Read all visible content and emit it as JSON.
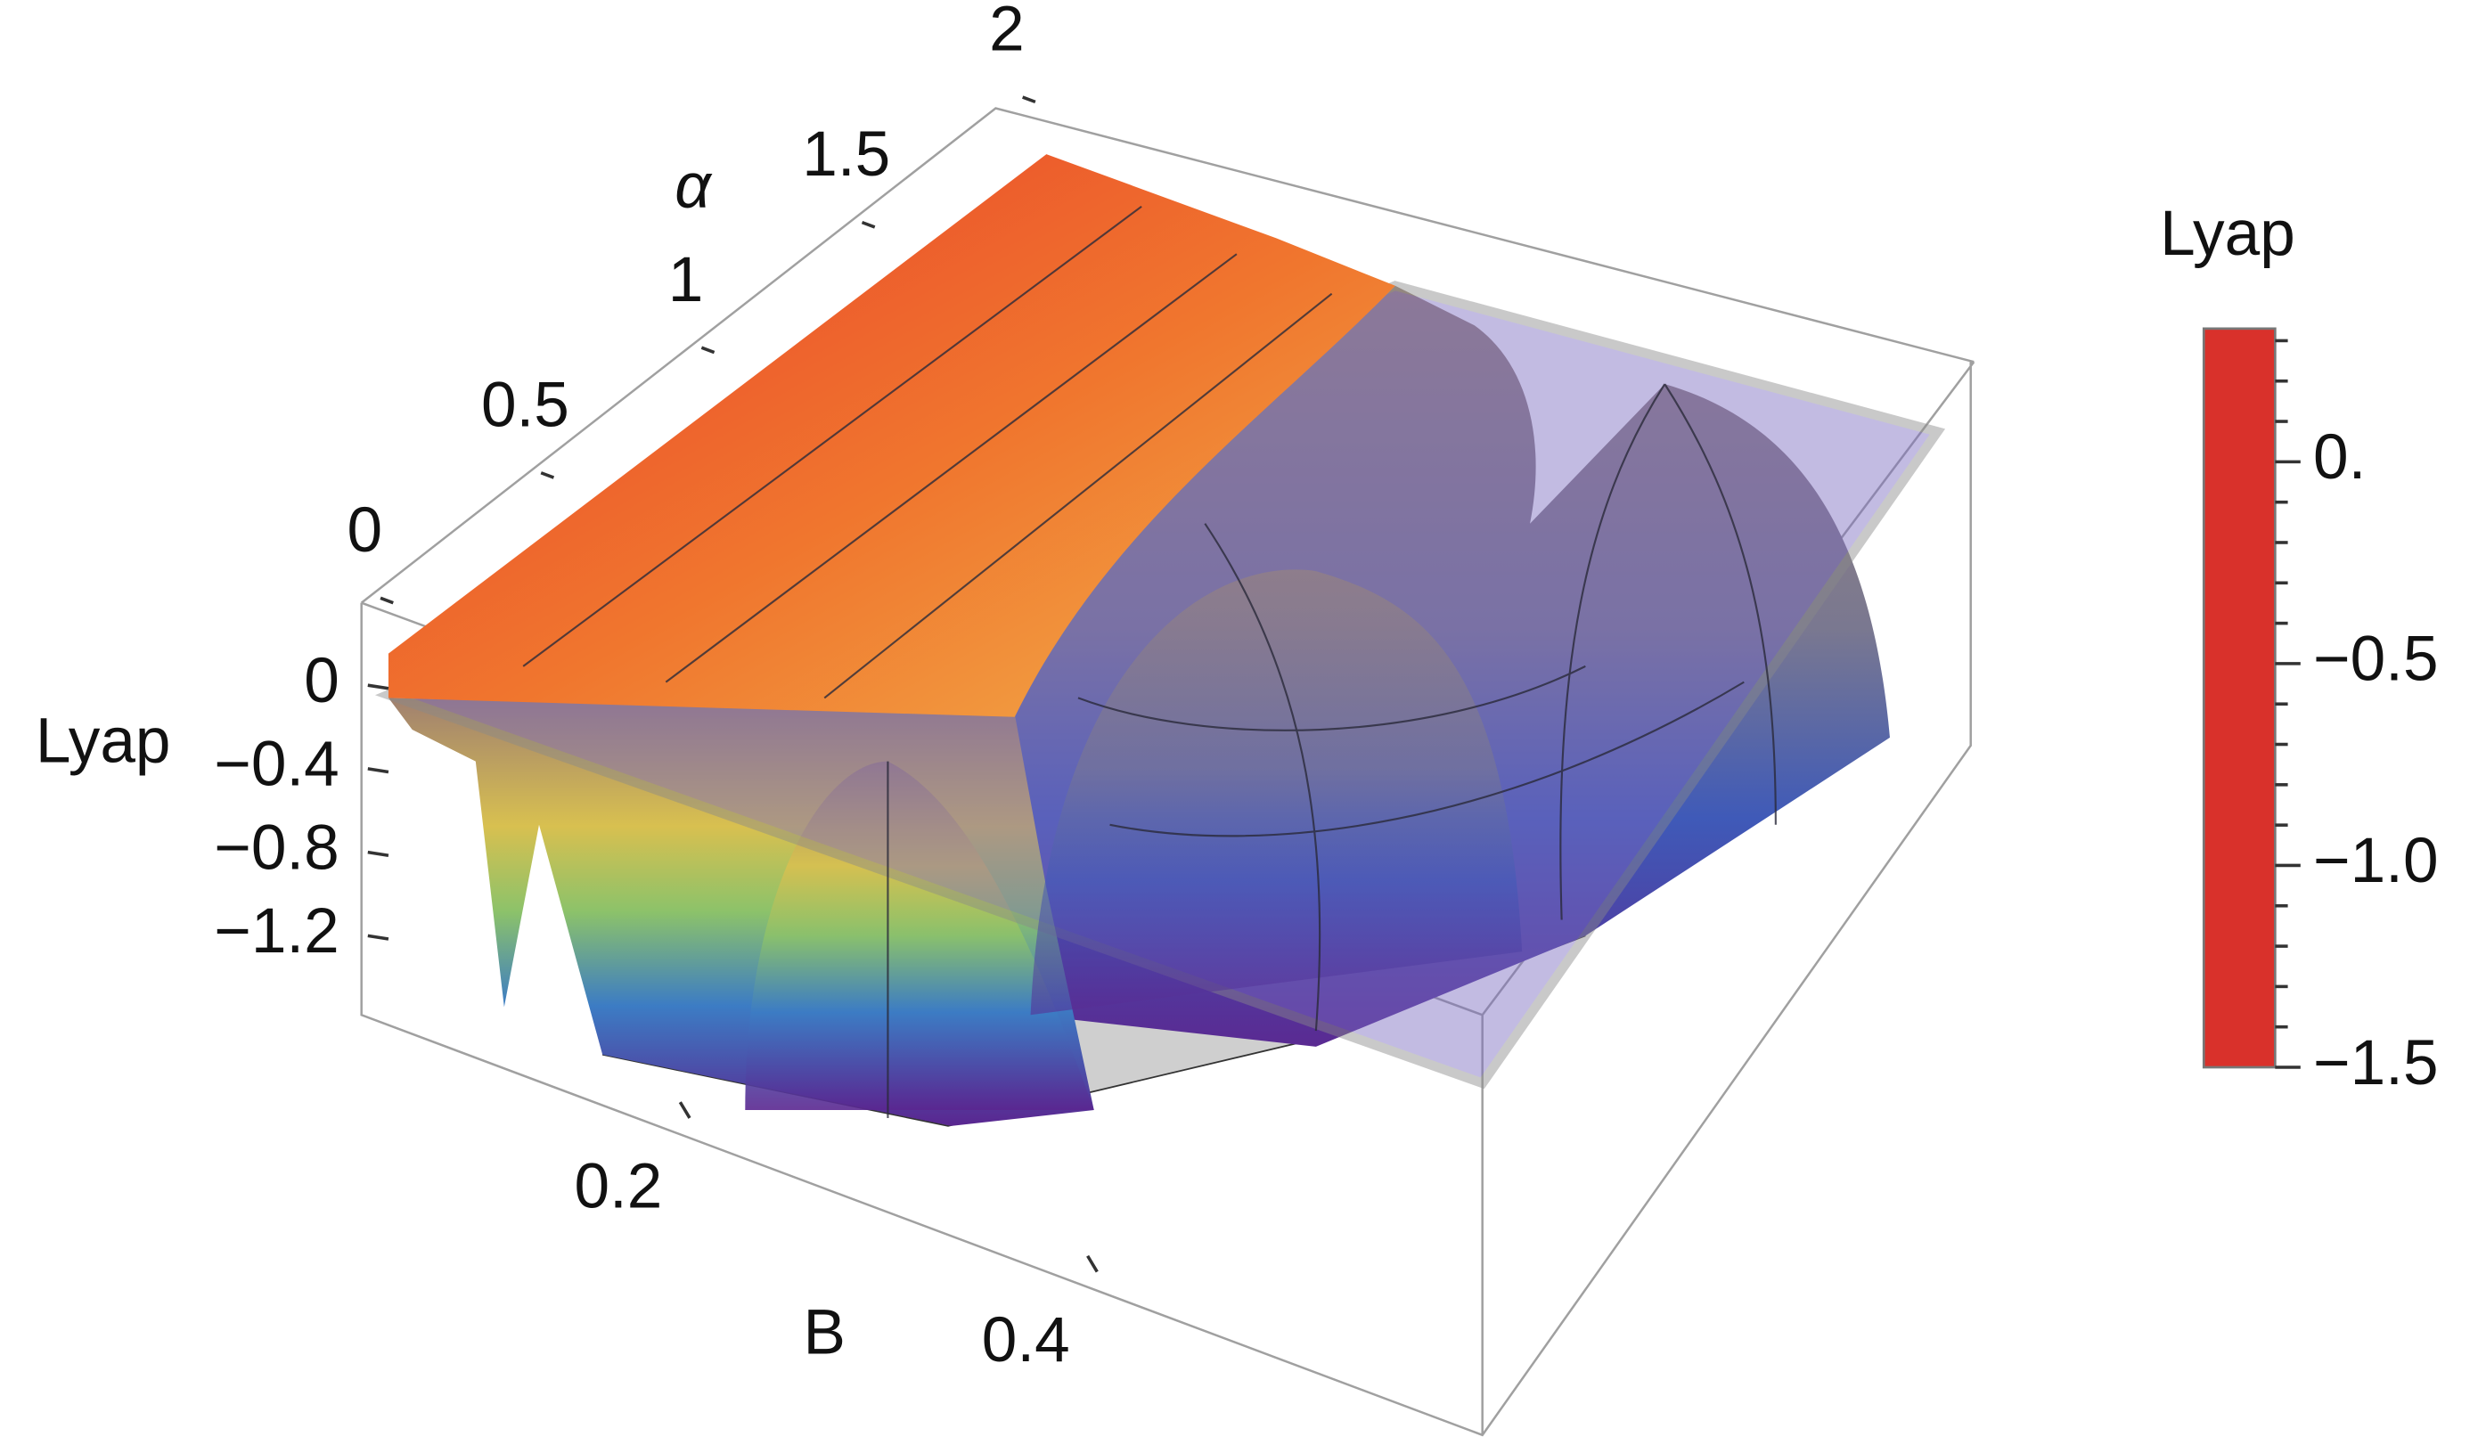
{
  "chart_data": {
    "type": "surface3d",
    "alpha_axis": {
      "label": "α",
      "lim": [
        0,
        2
      ],
      "ticks": [
        0,
        0.5,
        1,
        1.5,
        2
      ]
    },
    "lyap_axis": {
      "label": "Lyap",
      "lim": [
        -1.6,
        0.4
      ],
      "ticks": [
        0,
        {
          "value": -0.4,
          "label": "−0.4"
        },
        {
          "value": -0.8,
          "label": "−0.8"
        },
        {
          "value": -1.2,
          "label": "−1.2"
        }
      ]
    },
    "b_axis": {
      "label": "B",
      "lim": [
        0.04,
        0.59
      ],
      "ticks": [
        0.2,
        0.4
      ]
    },
    "colorbar": {
      "title": "Lyap",
      "lim": [
        -1.5,
        0.33
      ],
      "ticks": [
        {
          "value": 0,
          "label": "0."
        },
        {
          "value": -0.5,
          "label": "−0.5"
        },
        {
          "value": -1,
          "label": "−1.0"
        },
        {
          "value": -1.5,
          "label": "−1.5"
        }
      ],
      "minor_ticks": [
        -1.4,
        -1.3,
        -1.2,
        -1.1,
        -0.9,
        -0.8,
        -0.7,
        -0.6,
        -0.4,
        -0.3,
        -0.2,
        -0.1,
        0.1,
        0.2,
        0.3
      ],
      "colors": [
        "#d9312b",
        "#ee6a2e",
        "#f0a13a",
        "#d7b944",
        "#98c455",
        "#4fb29a",
        "#3a86c4",
        "#3a4fc2",
        "#5a2f9e",
        "#7a2a8e"
      ]
    }
  }
}
